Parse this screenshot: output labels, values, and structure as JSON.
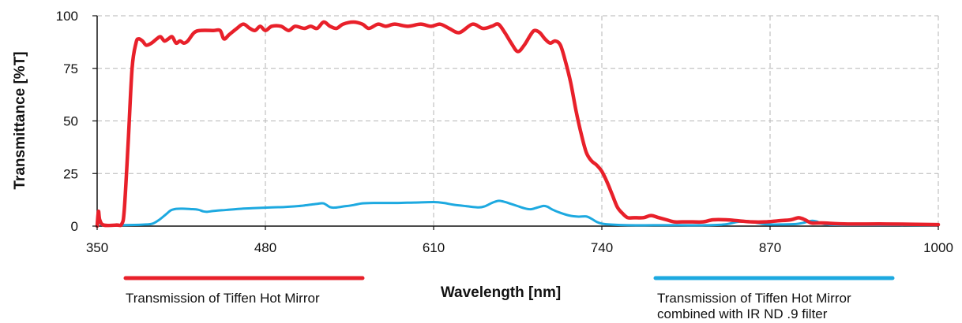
{
  "chart_data": {
    "type": "line",
    "xlabel": "Wavelength [nm]",
    "ylabel": "Transmittance [%T]",
    "xlim": [
      350,
      1000
    ],
    "ylim": [
      0,
      100
    ],
    "x_ticks": [
      350,
      480,
      610,
      740,
      870,
      1000
    ],
    "y_ticks": [
      0,
      25,
      50,
      75,
      100
    ],
    "grid": true,
    "series": [
      {
        "name": "Transmission of Tiffen Hot Mirror",
        "color": "#e8202a",
        "points": [
          [
            350,
            0
          ],
          [
            351,
            7
          ],
          [
            352,
            3
          ],
          [
            355,
            0.5
          ],
          [
            365,
            0.5
          ],
          [
            369,
            1
          ],
          [
            371,
            8
          ],
          [
            374,
            40
          ],
          [
            377,
            75
          ],
          [
            380,
            87
          ],
          [
            382,
            89
          ],
          [
            385,
            88
          ],
          [
            388,
            86
          ],
          [
            392,
            87
          ],
          [
            396,
            89
          ],
          [
            399,
            90
          ],
          [
            402,
            88
          ],
          [
            405,
            89
          ],
          [
            408,
            90
          ],
          [
            411,
            87
          ],
          [
            414,
            88
          ],
          [
            417,
            87
          ],
          [
            420,
            88
          ],
          [
            425,
            92
          ],
          [
            430,
            93
          ],
          [
            440,
            93
          ],
          [
            445,
            93
          ],
          [
            448,
            89
          ],
          [
            452,
            91
          ],
          [
            458,
            94
          ],
          [
            463,
            96
          ],
          [
            468,
            94
          ],
          [
            472,
            93
          ],
          [
            476,
            95
          ],
          [
            480,
            93
          ],
          [
            485,
            95
          ],
          [
            492,
            95
          ],
          [
            498,
            93
          ],
          [
            503,
            95
          ],
          [
            510,
            94
          ],
          [
            515,
            95
          ],
          [
            520,
            94
          ],
          [
            525,
            97
          ],
          [
            530,
            95
          ],
          [
            535,
            94
          ],
          [
            540,
            96
          ],
          [
            548,
            97
          ],
          [
            555,
            96
          ],
          [
            560,
            94
          ],
          [
            567,
            96
          ],
          [
            573,
            95
          ],
          [
            580,
            96
          ],
          [
            590,
            95
          ],
          [
            600,
            96
          ],
          [
            608,
            95
          ],
          [
            615,
            96
          ],
          [
            622,
            94
          ],
          [
            630,
            92
          ],
          [
            640,
            96
          ],
          [
            648,
            94
          ],
          [
            655,
            95
          ],
          [
            660,
            96
          ],
          [
            665,
            92
          ],
          [
            670,
            87
          ],
          [
            675,
            83
          ],
          [
            680,
            86
          ],
          [
            685,
            91
          ],
          [
            688,
            93
          ],
          [
            692,
            92
          ],
          [
            696,
            89
          ],
          [
            700,
            87
          ],
          [
            704,
            88
          ],
          [
            708,
            86
          ],
          [
            712,
            78
          ],
          [
            716,
            68
          ],
          [
            720,
            55
          ],
          [
            724,
            44
          ],
          [
            728,
            35
          ],
          [
            732,
            31
          ],
          [
            736,
            29
          ],
          [
            740,
            26
          ],
          [
            744,
            21
          ],
          [
            748,
            15
          ],
          [
            752,
            9
          ],
          [
            756,
            6
          ],
          [
            760,
            4
          ],
          [
            765,
            4
          ],
          [
            772,
            4
          ],
          [
            778,
            5
          ],
          [
            784,
            4
          ],
          [
            790,
            3
          ],
          [
            796,
            2
          ],
          [
            802,
            2
          ],
          [
            810,
            2
          ],
          [
            818,
            2
          ],
          [
            826,
            3
          ],
          [
            836,
            3
          ],
          [
            846,
            2.5
          ],
          [
            856,
            2
          ],
          [
            866,
            2
          ],
          [
            876,
            2.5
          ],
          [
            886,
            3
          ],
          [
            892,
            4
          ],
          [
            897,
            3
          ],
          [
            902,
            1.5
          ],
          [
            910,
            1.5
          ],
          [
            930,
            1
          ],
          [
            960,
            1
          ],
          [
            1000,
            0.7
          ]
        ]
      },
      {
        "name": "Transmission of Tiffen Hot Mirror combined with IR ND .9 filter",
        "color": "#1da9e0",
        "points": [
          [
            350,
            0
          ],
          [
            352,
            2
          ],
          [
            354,
            0.5
          ],
          [
            365,
            0.5
          ],
          [
            375,
            0.5
          ],
          [
            388,
            0.8
          ],
          [
            393,
            1.2
          ],
          [
            398,
            3
          ],
          [
            403,
            5.5
          ],
          [
            407,
            7.5
          ],
          [
            411,
            8.2
          ],
          [
            416,
            8.3
          ],
          [
            422,
            8.1
          ],
          [
            428,
            7.8
          ],
          [
            432,
            7
          ],
          [
            435,
            6.8
          ],
          [
            440,
            7.2
          ],
          [
            450,
            7.7
          ],
          [
            460,
            8.2
          ],
          [
            470,
            8.5
          ],
          [
            485,
            8.9
          ],
          [
            495,
            9.1
          ],
          [
            505,
            9.5
          ],
          [
            510,
            9.8
          ],
          [
            515,
            10.2
          ],
          [
            520,
            10.6
          ],
          [
            525,
            10.8
          ],
          [
            530,
            9
          ],
          [
            534,
            8.8
          ],
          [
            540,
            9.3
          ],
          [
            548,
            10
          ],
          [
            555,
            10.8
          ],
          [
            565,
            11
          ],
          [
            580,
            11
          ],
          [
            595,
            11.2
          ],
          [
            610,
            11.4
          ],
          [
            618,
            11
          ],
          [
            625,
            10.2
          ],
          [
            635,
            9.5
          ],
          [
            645,
            8.9
          ],
          [
            650,
            9.5
          ],
          [
            655,
            11
          ],
          [
            660,
            12
          ],
          [
            665,
            11.5
          ],
          [
            670,
            10.5
          ],
          [
            675,
            9.5
          ],
          [
            680,
            8.5
          ],
          [
            685,
            8
          ],
          [
            690,
            8.8
          ],
          [
            695,
            9.6
          ],
          [
            698,
            9.2
          ],
          [
            702,
            7.8
          ],
          [
            708,
            6.3
          ],
          [
            715,
            5
          ],
          [
            722,
            4.5
          ],
          [
            728,
            4.6
          ],
          [
            732,
            3.5
          ],
          [
            736,
            2
          ],
          [
            740,
            1.2
          ],
          [
            748,
            0.7
          ],
          [
            760,
            0.4
          ],
          [
            780,
            0.4
          ],
          [
            800,
            0.4
          ],
          [
            820,
            0.4
          ],
          [
            835,
            0.8
          ],
          [
            845,
            2
          ],
          [
            852,
            2.2
          ],
          [
            860,
            1.5
          ],
          [
            868,
            0.8
          ],
          [
            880,
            0.8
          ],
          [
            890,
            1
          ],
          [
            896,
            1.6
          ],
          [
            902,
            2.5
          ],
          [
            906,
            2.2
          ],
          [
            910,
            1.2
          ],
          [
            918,
            0.6
          ],
          [
            940,
            0.5
          ],
          [
            970,
            0.5
          ],
          [
            1000,
            0.4
          ]
        ]
      }
    ]
  }
}
